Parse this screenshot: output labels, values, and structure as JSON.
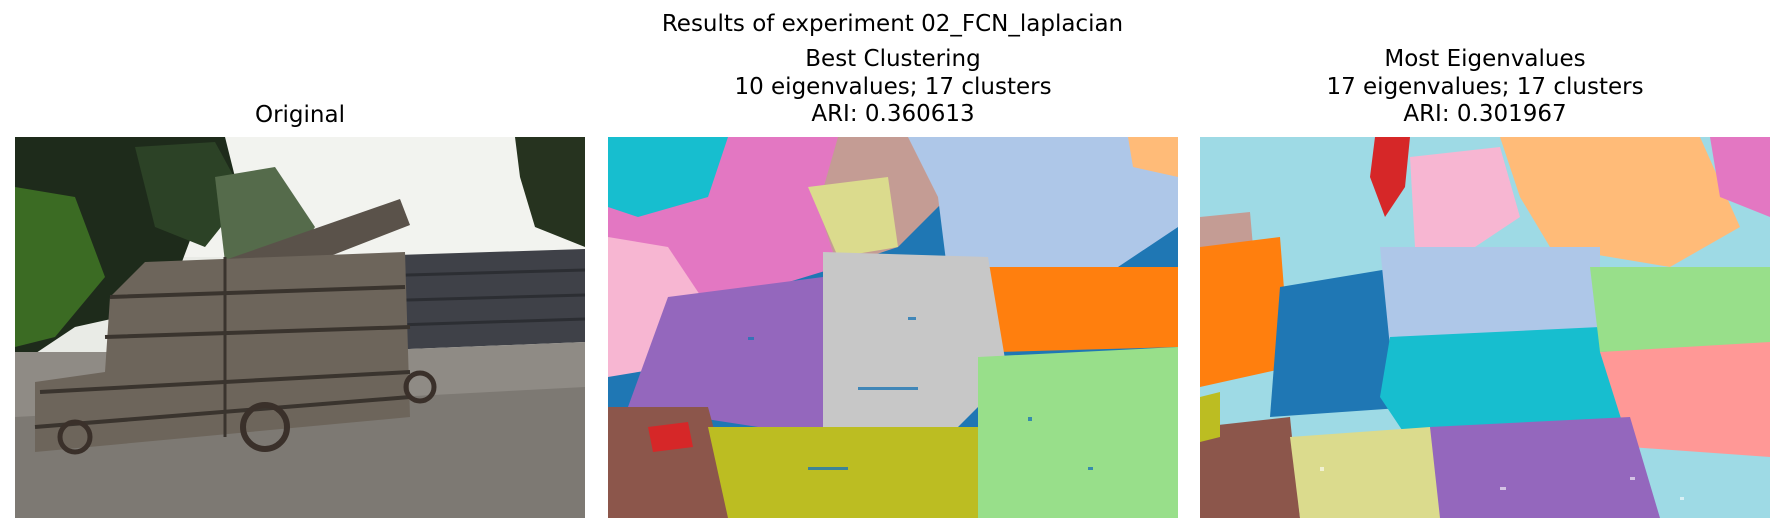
{
  "figure": {
    "suptitle": "Results of experiment 02_FCN_laplacian"
  },
  "panels": [
    {
      "title_lines": [
        "Original"
      ],
      "image": "photo: wooden cannon on cobblestone courtyard, trees and stone wall behind"
    },
    {
      "title_lines": [
        "Best Clustering",
        "10 eigenvalues; 17 clusters",
        "ARI: 0.360613"
      ],
      "image": "segmentation map, 17 cluster colors"
    },
    {
      "title_lines": [
        "Most Eigenvalues",
        "17 eigenvalues; 17 clusters",
        "ARI: 0.301967"
      ],
      "image": "segmentation map, 17 cluster colors"
    }
  ],
  "palette": {
    "tab_blue": "#1f77b4",
    "tab_lightblue": "#aec7e8",
    "tab_orange": "#ff7f0e",
    "tab_lightorange": "#ffbb78",
    "tab_green": "#98df8a",
    "tab_red": "#d62728",
    "tab_pink": "#ff9896",
    "tab_purple": "#9467bd",
    "tab_brown": "#8c564b",
    "tab_lightbrown": "#c49c94",
    "tab_magenta": "#e377c2",
    "tab_lightmagenta": "#f7b6d2",
    "tab_gray": "#c7c7c7",
    "tab_olive": "#bcbd22",
    "tab_lightolive": "#dbdb8d",
    "tab_cyan": "#17becf",
    "tab_lightcyan": "#9edae5"
  }
}
